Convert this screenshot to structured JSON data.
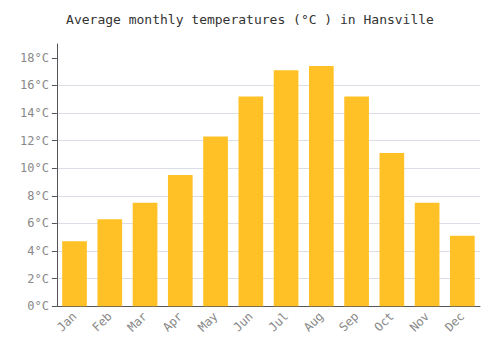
{
  "chart_data": {
    "type": "bar",
    "title": "Average monthly temperatures (°C ) in Hansville",
    "categories": [
      "Jan",
      "Feb",
      "Mar",
      "Apr",
      "May",
      "Jun",
      "Jul",
      "Aug",
      "Sep",
      "Oct",
      "Nov",
      "Dec"
    ],
    "values": [
      4.7,
      6.3,
      7.5,
      9.5,
      12.3,
      15.2,
      17.1,
      17.4,
      15.2,
      11.1,
      7.5,
      5.1
    ],
    "color": "#FFC125",
    "ylim": [
      0,
      19
    ],
    "yticks": [
      {
        "value": 0,
        "label": "0°C"
      },
      {
        "value": 2,
        "label": "2°C"
      },
      {
        "value": 4,
        "label": "4°C"
      },
      {
        "value": 6,
        "label": "6°C"
      },
      {
        "value": 8,
        "label": "8°C"
      },
      {
        "value": 10,
        "label": "10°C"
      },
      {
        "value": 12,
        "label": "12°C"
      },
      {
        "value": 14,
        "label": "14°C"
      },
      {
        "value": 16,
        "label": "16°C"
      },
      {
        "value": 18,
        "label": "18°C"
      }
    ],
    "grid": true
  }
}
